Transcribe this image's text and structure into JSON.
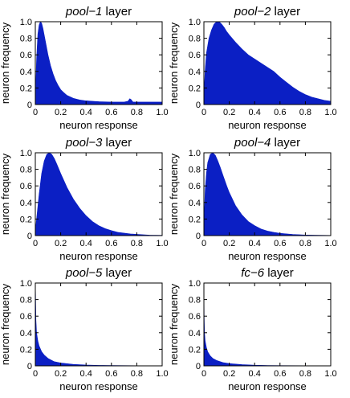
{
  "chart_data": [
    {
      "type": "area",
      "title": {
        "italic": "pool−1",
        "rest": " layer"
      },
      "xlabel": "neuron response",
      "ylabel": "neuron frequency",
      "xlim": [
        0,
        1
      ],
      "ylim": [
        0,
        1
      ],
      "xticks": [
        "0",
        "0.2",
        "0.4",
        "0.6",
        "0.8",
        "1.0"
      ],
      "yticks": [
        "0",
        "0.2",
        "0.4",
        "0.6",
        "0.8",
        "1.0"
      ],
      "grid": false,
      "color": "#0b1fc4",
      "x": [
        0,
        0.01,
        0.02,
        0.03,
        0.04,
        0.05,
        0.06,
        0.07,
        0.08,
        0.1,
        0.12,
        0.14,
        0.16,
        0.18,
        0.2,
        0.22,
        0.25,
        0.3,
        0.35,
        0.4,
        0.45,
        0.5,
        0.55,
        0.6,
        0.65,
        0.7,
        0.73,
        0.745,
        0.755,
        0.77,
        0.8,
        0.9,
        1.0
      ],
      "y": [
        0.05,
        0.55,
        0.85,
        0.96,
        1.0,
        0.98,
        0.92,
        0.84,
        0.76,
        0.6,
        0.47,
        0.37,
        0.29,
        0.23,
        0.18,
        0.15,
        0.11,
        0.075,
        0.055,
        0.045,
        0.04,
        0.035,
        0.032,
        0.03,
        0.03,
        0.03,
        0.04,
        0.07,
        0.06,
        0.03,
        0.03,
        0.03,
        0.03
      ]
    },
    {
      "type": "area",
      "title": {
        "italic": "pool−2",
        "rest": " layer"
      },
      "xlabel": "neuron response",
      "ylabel": "neuron frequency",
      "xlim": [
        0,
        1
      ],
      "ylim": [
        0,
        1
      ],
      "xticks": [
        "0",
        "0.2",
        "0.4",
        "0.6",
        "0.8",
        "1.0"
      ],
      "yticks": [
        "0",
        "0.2",
        "0.4",
        "0.6",
        "0.8",
        "1.0"
      ],
      "grid": false,
      "color": "#0b1fc4",
      "x": [
        0,
        0.01,
        0.02,
        0.04,
        0.06,
        0.08,
        0.1,
        0.12,
        0.14,
        0.16,
        0.18,
        0.2,
        0.25,
        0.3,
        0.35,
        0.4,
        0.45,
        0.5,
        0.55,
        0.6,
        0.65,
        0.7,
        0.75,
        0.8,
        0.85,
        0.9,
        0.95,
        1.0
      ],
      "y": [
        0.1,
        0.42,
        0.62,
        0.8,
        0.9,
        0.97,
        1.0,
        1.0,
        0.97,
        0.93,
        0.88,
        0.84,
        0.75,
        0.67,
        0.6,
        0.55,
        0.5,
        0.45,
        0.4,
        0.33,
        0.27,
        0.21,
        0.16,
        0.12,
        0.09,
        0.07,
        0.05,
        0.04
      ]
    },
    {
      "type": "area",
      "title": {
        "italic": "pool−3",
        "rest": " layer"
      },
      "xlabel": "neuron response",
      "ylabel": "neuron frequency",
      "xlim": [
        0,
        1
      ],
      "ylim": [
        0,
        1
      ],
      "xticks": [
        "0",
        "0.2",
        "0.4",
        "0.6",
        "0.8",
        "1.0"
      ],
      "yticks": [
        "0",
        "0.2",
        "0.4",
        "0.6",
        "0.8",
        "1.0"
      ],
      "grid": false,
      "color": "#0b1fc4",
      "x": [
        0,
        0.01,
        0.03,
        0.05,
        0.07,
        0.09,
        0.11,
        0.13,
        0.15,
        0.17,
        0.2,
        0.25,
        0.3,
        0.35,
        0.4,
        0.45,
        0.5,
        0.55,
        0.6,
        0.65,
        0.7,
        0.75,
        0.8,
        0.85,
        0.9,
        1.0
      ],
      "y": [
        0.05,
        0.2,
        0.5,
        0.75,
        0.9,
        0.98,
        1.0,
        0.98,
        0.93,
        0.86,
        0.75,
        0.58,
        0.44,
        0.33,
        0.24,
        0.17,
        0.12,
        0.085,
        0.06,
        0.04,
        0.03,
        0.02,
        0.015,
        0.01,
        0.006,
        0.003
      ]
    },
    {
      "type": "area",
      "title": {
        "italic": "pool−4",
        "rest": " layer"
      },
      "xlabel": "neuron response",
      "ylabel": "neuron frequency",
      "xlim": [
        0,
        1
      ],
      "ylim": [
        0,
        1
      ],
      "xticks": [
        "0",
        "0.2",
        "0.4",
        "0.6",
        "0.8",
        "1.0"
      ],
      "yticks": [
        "0",
        "0.2",
        "0.4",
        "0.6",
        "0.8",
        "1.0"
      ],
      "grid": false,
      "color": "#0b1fc4",
      "x": [
        0,
        0.01,
        0.02,
        0.03,
        0.05,
        0.07,
        0.09,
        0.11,
        0.13,
        0.15,
        0.18,
        0.2,
        0.25,
        0.3,
        0.35,
        0.4,
        0.45,
        0.5,
        0.55,
        0.6,
        0.7,
        0.8,
        0.9,
        1.0
      ],
      "y": [
        0.1,
        0.55,
        0.75,
        0.88,
        0.98,
        1.0,
        0.97,
        0.9,
        0.82,
        0.73,
        0.6,
        0.52,
        0.36,
        0.25,
        0.17,
        0.12,
        0.08,
        0.055,
        0.04,
        0.028,
        0.014,
        0.007,
        0.004,
        0.002
      ]
    },
    {
      "type": "area",
      "title": {
        "italic": "pool−5",
        "rest": " layer"
      },
      "xlabel": "neuron response",
      "ylabel": "neuron frequency",
      "xlim": [
        0,
        1
      ],
      "ylim": [
        0,
        1
      ],
      "xticks": [
        "0",
        "0.2",
        "0.4",
        "0.6",
        "0.8",
        "1.0"
      ],
      "yticks": [
        "0",
        "0.2",
        "0.4",
        "0.6",
        "0.8",
        "1.0"
      ],
      "grid": false,
      "color": "#0b1fc4",
      "x": [
        0,
        0.002,
        0.005,
        0.01,
        0.02,
        0.03,
        0.05,
        0.07,
        0.1,
        0.15,
        0.2,
        0.3,
        0.4,
        0.5,
        0.6,
        0.8,
        1.0
      ],
      "y": [
        1.0,
        0.85,
        0.55,
        0.4,
        0.3,
        0.24,
        0.17,
        0.13,
        0.09,
        0.05,
        0.035,
        0.018,
        0.01,
        0.006,
        0.004,
        0.002,
        0.001
      ]
    },
    {
      "type": "area",
      "title": {
        "italic": "fc−6",
        "rest": " layer"
      },
      "xlabel": "neuron response",
      "ylabel": "neuron frequency",
      "xlim": [
        0,
        1
      ],
      "ylim": [
        0,
        1
      ],
      "xticks": [
        "0",
        "0.2",
        "0.4",
        "0.6",
        "0.8",
        "1.0"
      ],
      "yticks": [
        "0",
        "0.2",
        "0.4",
        "0.6",
        "0.8",
        "1.0"
      ],
      "grid": false,
      "color": "#0b1fc4",
      "x": [
        0,
        0.002,
        0.005,
        0.01,
        0.02,
        0.03,
        0.05,
        0.07,
        0.1,
        0.15,
        0.2,
        0.3,
        0.4,
        0.5,
        0.6,
        0.8,
        1.0
      ],
      "y": [
        1.0,
        0.6,
        0.4,
        0.3,
        0.22,
        0.17,
        0.12,
        0.09,
        0.065,
        0.04,
        0.027,
        0.015,
        0.008,
        0.005,
        0.003,
        0.0015,
        0.001
      ]
    }
  ]
}
